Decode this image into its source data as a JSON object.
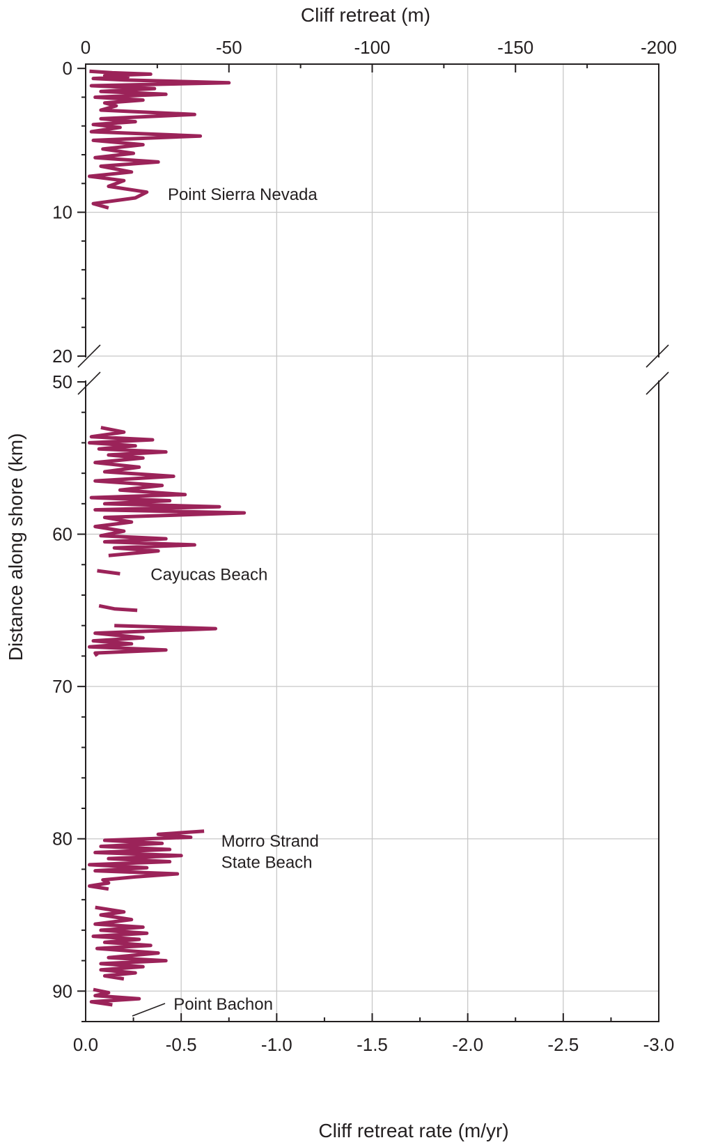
{
  "chart_data": {
    "type": "line",
    "title": "",
    "x_bottom": {
      "label": "Cliff retreat rate (m/yr)",
      "ticks": [
        "0.0",
        "-0.5",
        "-1.0",
        "-1.5",
        "-2.0",
        "-2.5",
        "-3.0"
      ],
      "range": [
        0.0,
        -3.0
      ]
    },
    "x_top": {
      "label": "Cliff retreat (m)",
      "ticks": [
        "0",
        "-50",
        "-100",
        "-150",
        "-200"
      ],
      "range": [
        0,
        -200
      ]
    },
    "y": {
      "label": "Distance along shore (km)",
      "upper_ticks": [
        "0",
        "10",
        "20"
      ],
      "upper_range": [
        -0.3,
        20
      ],
      "lower_ticks": [
        "50",
        "60",
        "70",
        "80",
        "90"
      ],
      "lower_range": [
        50,
        92
      ],
      "axis_break": [
        20,
        50
      ],
      "inverted": true
    },
    "grid": true,
    "annotations": [
      {
        "text": "Point Sierra Nevada",
        "x": -0.43,
        "y": 8.7
      },
      {
        "text": "Cayucas Beach",
        "x": -0.34,
        "y": 62.6
      },
      {
        "text": "Morro Strand",
        "x": -0.71,
        "y": 80.1
      },
      {
        "text": "State Beach",
        "x": -0.71,
        "y": 81.5
      },
      {
        "text": "Point Bachon",
        "x": -0.46,
        "y": 90.8
      }
    ],
    "series": [
      {
        "color": "#9b2359",
        "segments": [
          {
            "km": [
              0.2,
              0.3,
              0.4,
              0.5,
              0.6,
              0.7,
              0.8,
              1.0,
              1.2,
              1.4,
              1.6,
              1.8,
              2.0,
              2.2,
              2.4,
              2.6,
              2.9,
              3.2,
              3.5,
              3.7,
              3.9,
              4.1,
              4.4,
              4.7,
              5.0,
              5.3,
              5.6,
              5.9,
              6.2,
              6.5,
              6.8,
              7.2,
              7.5,
              7.8,
              8.2,
              8.6,
              9.0,
              9.4,
              9.7
            ],
            "rate": [
              -0.02,
              -0.14,
              -0.34,
              -0.1,
              -0.22,
              -0.04,
              -0.2,
              -0.75,
              -0.03,
              -0.36,
              -0.08,
              -0.42,
              -0.05,
              -0.3,
              -0.1,
              -0.16,
              -0.08,
              -0.57,
              -0.08,
              -0.26,
              -0.04,
              -0.18,
              -0.03,
              -0.6,
              -0.04,
              -0.3,
              -0.09,
              -0.25,
              -0.05,
              -0.38,
              -0.08,
              -0.24,
              -0.02,
              -0.2,
              -0.12,
              -0.32,
              -0.26,
              -0.04,
              -0.12
            ]
          },
          {
            "km": [
              53.0,
              53.3,
              53.6,
              53.8,
              54.0,
              54.2,
              54.4,
              54.6,
              54.8,
              55.0,
              55.3,
              55.6,
              55.9,
              56.2,
              56.5,
              56.8,
              57.1,
              57.4,
              57.6,
              57.8,
              58.0,
              58.2,
              58.4,
              58.6,
              58.9,
              59.2,
              59.5,
              59.8,
              60.1,
              60.3,
              60.5,
              60.7,
              60.9,
              61.1,
              61.4
            ],
            "rate": [
              -0.08,
              -0.2,
              -0.03,
              -0.35,
              -0.02,
              -0.26,
              -0.07,
              -0.42,
              -0.12,
              -0.3,
              -0.05,
              -0.28,
              -0.1,
              -0.46,
              -0.05,
              -0.4,
              -0.18,
              -0.52,
              -0.03,
              -0.44,
              -0.1,
              -0.7,
              -0.05,
              -0.83,
              -0.1,
              -0.24,
              -0.05,
              -0.2,
              -0.08,
              -0.42,
              -0.1,
              -0.57,
              -0.15,
              -0.38,
              -0.12
            ]
          },
          {
            "km": [
              62.4,
              62.6
            ],
            "rate": [
              -0.06,
              -0.18
            ]
          },
          {
            "km": [
              64.7,
              64.9,
              65.0
            ],
            "rate": [
              -0.07,
              -0.15,
              -0.27
            ]
          },
          {
            "km": [
              66.0,
              66.2,
              66.5,
              66.8,
              67.0,
              67.2,
              67.4,
              67.6,
              67.8,
              68.0
            ],
            "rate": [
              -0.15,
              -0.68,
              -0.05,
              -0.3,
              -0.04,
              -0.24,
              -0.02,
              -0.42,
              -0.05,
              -0.06
            ]
          },
          {
            "km": [
              79.5,
              79.7,
              79.9,
              80.1,
              80.3,
              80.5,
              80.7,
              80.9,
              81.1,
              81.3,
              81.5,
              81.7,
              81.9,
              82.1,
              82.3,
              82.5,
              82.7,
              82.9,
              83.1,
              83.3
            ],
            "rate": [
              -0.62,
              -0.38,
              -0.55,
              -0.1,
              -0.4,
              -0.08,
              -0.44,
              -0.05,
              -0.5,
              -0.12,
              -0.44,
              -0.02,
              -0.32,
              -0.05,
              -0.48,
              -0.26,
              -0.09,
              -0.12,
              -0.02,
              -0.12
            ]
          },
          {
            "km": [
              84.5,
              84.8,
              85.0,
              85.3,
              85.6,
              85.8,
              86.0,
              86.2,
              86.4,
              86.6,
              86.8,
              87.0,
              87.2,
              87.5,
              87.8,
              88.0,
              88.2,
              88.4,
              88.6,
              88.8,
              89.0,
              89.2
            ],
            "rate": [
              -0.05,
              -0.2,
              -0.08,
              -0.24,
              -0.05,
              -0.3,
              -0.08,
              -0.32,
              -0.04,
              -0.28,
              -0.1,
              -0.34,
              -0.06,
              -0.38,
              -0.12,
              -0.42,
              -0.08,
              -0.3,
              -0.08,
              -0.26,
              -0.1,
              -0.2
            ]
          },
          {
            "km": [
              89.9,
              90.1,
              90.3,
              90.5,
              90.7,
              90.9
            ],
            "rate": [
              -0.04,
              -0.12,
              -0.05,
              -0.28,
              -0.03,
              -0.14
            ]
          }
        ]
      }
    ]
  }
}
